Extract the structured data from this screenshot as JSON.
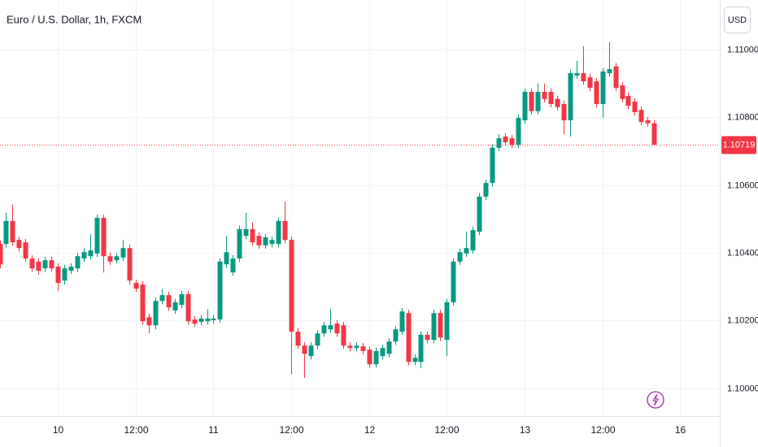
{
  "chart_data": {
    "type": "candlestick",
    "title": "Euro / U.S. Dollar, 1h, FXCM",
    "currency": "USD",
    "up_color": "#089981",
    "down_color": "#f23645",
    "ylim": [
      1.09918,
      1.11146
    ],
    "yticks": [
      {
        "value": 1.1,
        "label": "1.10000"
      },
      {
        "value": 1.102,
        "label": "1.10200"
      },
      {
        "value": 1.104,
        "label": "1.10400"
      },
      {
        "value": 1.106,
        "label": "1.10600"
      },
      {
        "value": 1.108,
        "label": "1.10800"
      },
      {
        "value": 1.11,
        "label": "1.11000"
      }
    ],
    "last_price": 1.10719,
    "grid": true,
    "categories": [
      null,
      null,
      null,
      null,
      null,
      null,
      null,
      null,
      null,
      "10",
      null,
      null,
      null,
      null,
      null,
      null,
      null,
      null,
      null,
      null,
      null,
      "12:00",
      null,
      null,
      null,
      null,
      null,
      null,
      null,
      null,
      null,
      null,
      null,
      "11",
      null,
      null,
      null,
      null,
      null,
      null,
      null,
      null,
      null,
      null,
      null,
      "12:00",
      null,
      null,
      null,
      null,
      null,
      null,
      null,
      null,
      null,
      null,
      null,
      "12",
      null,
      null,
      null,
      null,
      null,
      null,
      null,
      null,
      null,
      null,
      null,
      "12:00",
      null,
      null,
      null,
      null,
      null,
      null,
      null,
      null,
      null,
      null,
      null,
      "13",
      null,
      null,
      null,
      null,
      null,
      null,
      null,
      null,
      null,
      null,
      null,
      "12:00",
      null,
      null,
      null,
      null,
      null,
      null,
      null,
      null,
      null,
      null,
      null,
      "16"
    ],
    "open": [
      1.10426,
      1.10426,
      1.10494,
      1.10438,
      1.10431,
      1.10383,
      1.10374,
      1.10354,
      1.10378,
      1.10359,
      1.10318,
      1.10347,
      1.10354,
      1.10383,
      1.1039,
      1.10398,
      1.10503,
      1.1039,
      1.10378,
      1.10386,
      1.10414,
      1.10311,
      1.10306,
      1.1021,
      1.10186,
      1.10258,
      1.10275,
      1.1023,
      1.10246,
      1.10278,
      1.10203,
      1.10196,
      1.10198,
      1.10201,
      1.10203,
      1.10366,
      1.10342,
      1.10383,
      1.1045,
      1.1047,
      1.1045,
      1.10422,
      1.10426,
      1.10426,
      1.10494,
      1.10438,
      1.10167,
      1.10126,
      1.10095,
      1.10126,
      1.10162,
      1.10174,
      1.10191,
      1.10186,
      1.10126,
      1.10119,
      1.10124,
      1.10114,
      1.10071,
      1.10095,
      1.10102,
      1.10138,
      1.10167,
      1.10222,
      1.10078,
      1.10078,
      1.10158,
      1.10143,
      1.10222,
      1.10143,
      1.10254,
      1.10374,
      1.10398,
      1.10407,
      1.10462,
      1.10566,
      1.10606,
      1.1071,
      1.10743,
      1.10738,
      1.10719,
      1.10791,
      1.10875,
      1.10818,
      1.10875,
      1.10875,
      1.10854,
      1.10839,
      1.10791,
      1.10923,
      1.1093,
      1.10918,
      1.10906,
      1.10839,
      1.1093,
      1.1095,
      1.10894,
      1.10863,
      1.10846,
      1.10822,
      1.10791,
      1.10782,
      null,
      null,
      null,
      null
    ],
    "high": [
      1.10436,
      1.10518,
      1.10542,
      1.10448,
      1.10441,
      1.10393,
      1.10384,
      1.10388,
      1.10388,
      1.10369,
      1.10364,
      1.10369,
      1.104,
      1.10414,
      1.10455,
      1.10513,
      1.10513,
      1.104,
      1.104,
      1.10438,
      1.10424,
      1.10321,
      1.10316,
      1.1022,
      1.10268,
      1.10294,
      1.10285,
      1.10264,
      1.10288,
      1.10288,
      1.10213,
      1.10216,
      1.10234,
      1.10216,
      1.10384,
      1.1045,
      1.10393,
      1.1048,
      1.10518,
      1.1049,
      1.1046,
      1.10456,
      1.10448,
      1.10504,
      1.10551,
      1.10448,
      1.10177,
      1.10136,
      1.10136,
      1.10172,
      1.10196,
      1.10234,
      1.10201,
      1.10196,
      1.10136,
      1.10136,
      1.10134,
      1.10124,
      1.1012,
      1.10129,
      1.10148,
      1.10184,
      1.10237,
      1.10232,
      1.101,
      1.10168,
      1.10168,
      1.10232,
      1.10232,
      1.10264,
      1.10384,
      1.10412,
      1.10462,
      1.10477,
      1.10576,
      1.10616,
      1.1072,
      1.1075,
      1.10753,
      1.10748,
      1.10808,
      1.10885,
      1.10885,
      1.109,
      1.109,
      1.10885,
      1.10864,
      1.10849,
      1.1094,
      1.10966,
      1.1101,
      1.10928,
      1.10916,
      1.10945,
      1.11022,
      1.1096,
      1.10904,
      1.10873,
      1.10856,
      1.10832,
      1.10801,
      1.10792,
      null,
      null,
      null,
      null
    ],
    "low": [
      1.10354,
      1.10414,
      1.10421,
      1.10404,
      1.10373,
      1.10344,
      1.10335,
      1.10344,
      1.10344,
      1.10287,
      1.10306,
      1.10337,
      1.10344,
      1.10373,
      1.1038,
      1.10388,
      1.10342,
      1.10364,
      1.10368,
      1.10376,
      1.10306,
      1.10284,
      1.10188,
      1.10162,
      1.10174,
      1.10248,
      1.10229,
      1.1022,
      1.10236,
      1.10188,
      1.10181,
      1.10186,
      1.10188,
      1.10191,
      1.10193,
      1.10356,
      1.10332,
      1.10373,
      1.1044,
      1.10421,
      1.10412,
      1.10412,
      1.10416,
      1.10416,
      1.10428,
      1.10042,
      1.10116,
      1.1003,
      1.10085,
      1.10116,
      1.10152,
      1.10164,
      1.10152,
      1.10116,
      1.10109,
      1.10109,
      1.101,
      1.10061,
      1.10061,
      1.10085,
      1.10092,
      1.10128,
      1.10157,
      1.10068,
      1.10068,
      1.1006,
      1.10133,
      1.10133,
      1.1014,
      1.10095,
      1.10244,
      1.10364,
      1.10388,
      1.10397,
      1.10452,
      1.10556,
      1.10596,
      1.107,
      1.10716,
      1.10709,
      1.10709,
      1.10781,
      1.10808,
      1.10808,
      1.10844,
      1.10829,
      1.1082,
      1.1075,
      1.10743,
      1.10913,
      1.10896,
      1.10877,
      1.10829,
      1.10798,
      1.1092,
      1.10877,
      1.10844,
      1.10824,
      1.10805,
      1.10776,
      1.10772,
      1.10719,
      null,
      null,
      null,
      null
    ],
    "close": [
      1.10366,
      1.10494,
      1.10431,
      1.10414,
      1.10383,
      1.10354,
      1.10347,
      1.10378,
      1.10354,
      1.10311,
      1.10354,
      1.10359,
      1.1039,
      1.10402,
      1.10407,
      1.10503,
      1.1039,
      1.10374,
      1.1039,
      1.10414,
      1.10318,
      1.10294,
      1.10198,
      1.10186,
      1.10258,
      1.10275,
      1.10239,
      1.10254,
      1.10278,
      1.10198,
      1.10191,
      1.10206,
      1.10206,
      1.10206,
      1.10374,
      1.10402,
      1.10383,
      1.1047,
      1.1047,
      1.10431,
      1.10422,
      1.10446,
      1.10438,
      1.10494,
      1.10438,
      1.10167,
      1.10126,
      1.10102,
      1.10126,
      1.10162,
      1.10186,
      1.10186,
      1.10162,
      1.10126,
      1.10119,
      1.10126,
      1.1011,
      1.10071,
      1.1011,
      1.10119,
      1.10138,
      1.10174,
      1.10227,
      1.10078,
      1.1009,
      1.10158,
      1.10143,
      1.10222,
      1.1015,
      1.10254,
      1.10374,
      1.10402,
      1.10414,
      1.10467,
      1.10566,
      1.10606,
      1.1071,
      1.10738,
      1.10726,
      1.10719,
      1.10798,
      1.10875,
      1.10818,
      1.10875,
      1.10854,
      1.10839,
      1.1083,
      1.10791,
      1.1093,
      1.1093,
      1.10906,
      1.10887,
      1.10839,
      1.10935,
      1.10942,
      1.10887,
      1.10854,
      1.10834,
      1.10815,
      1.10786,
      1.10782,
      1.10719,
      null,
      null,
      null,
      null
    ]
  }
}
